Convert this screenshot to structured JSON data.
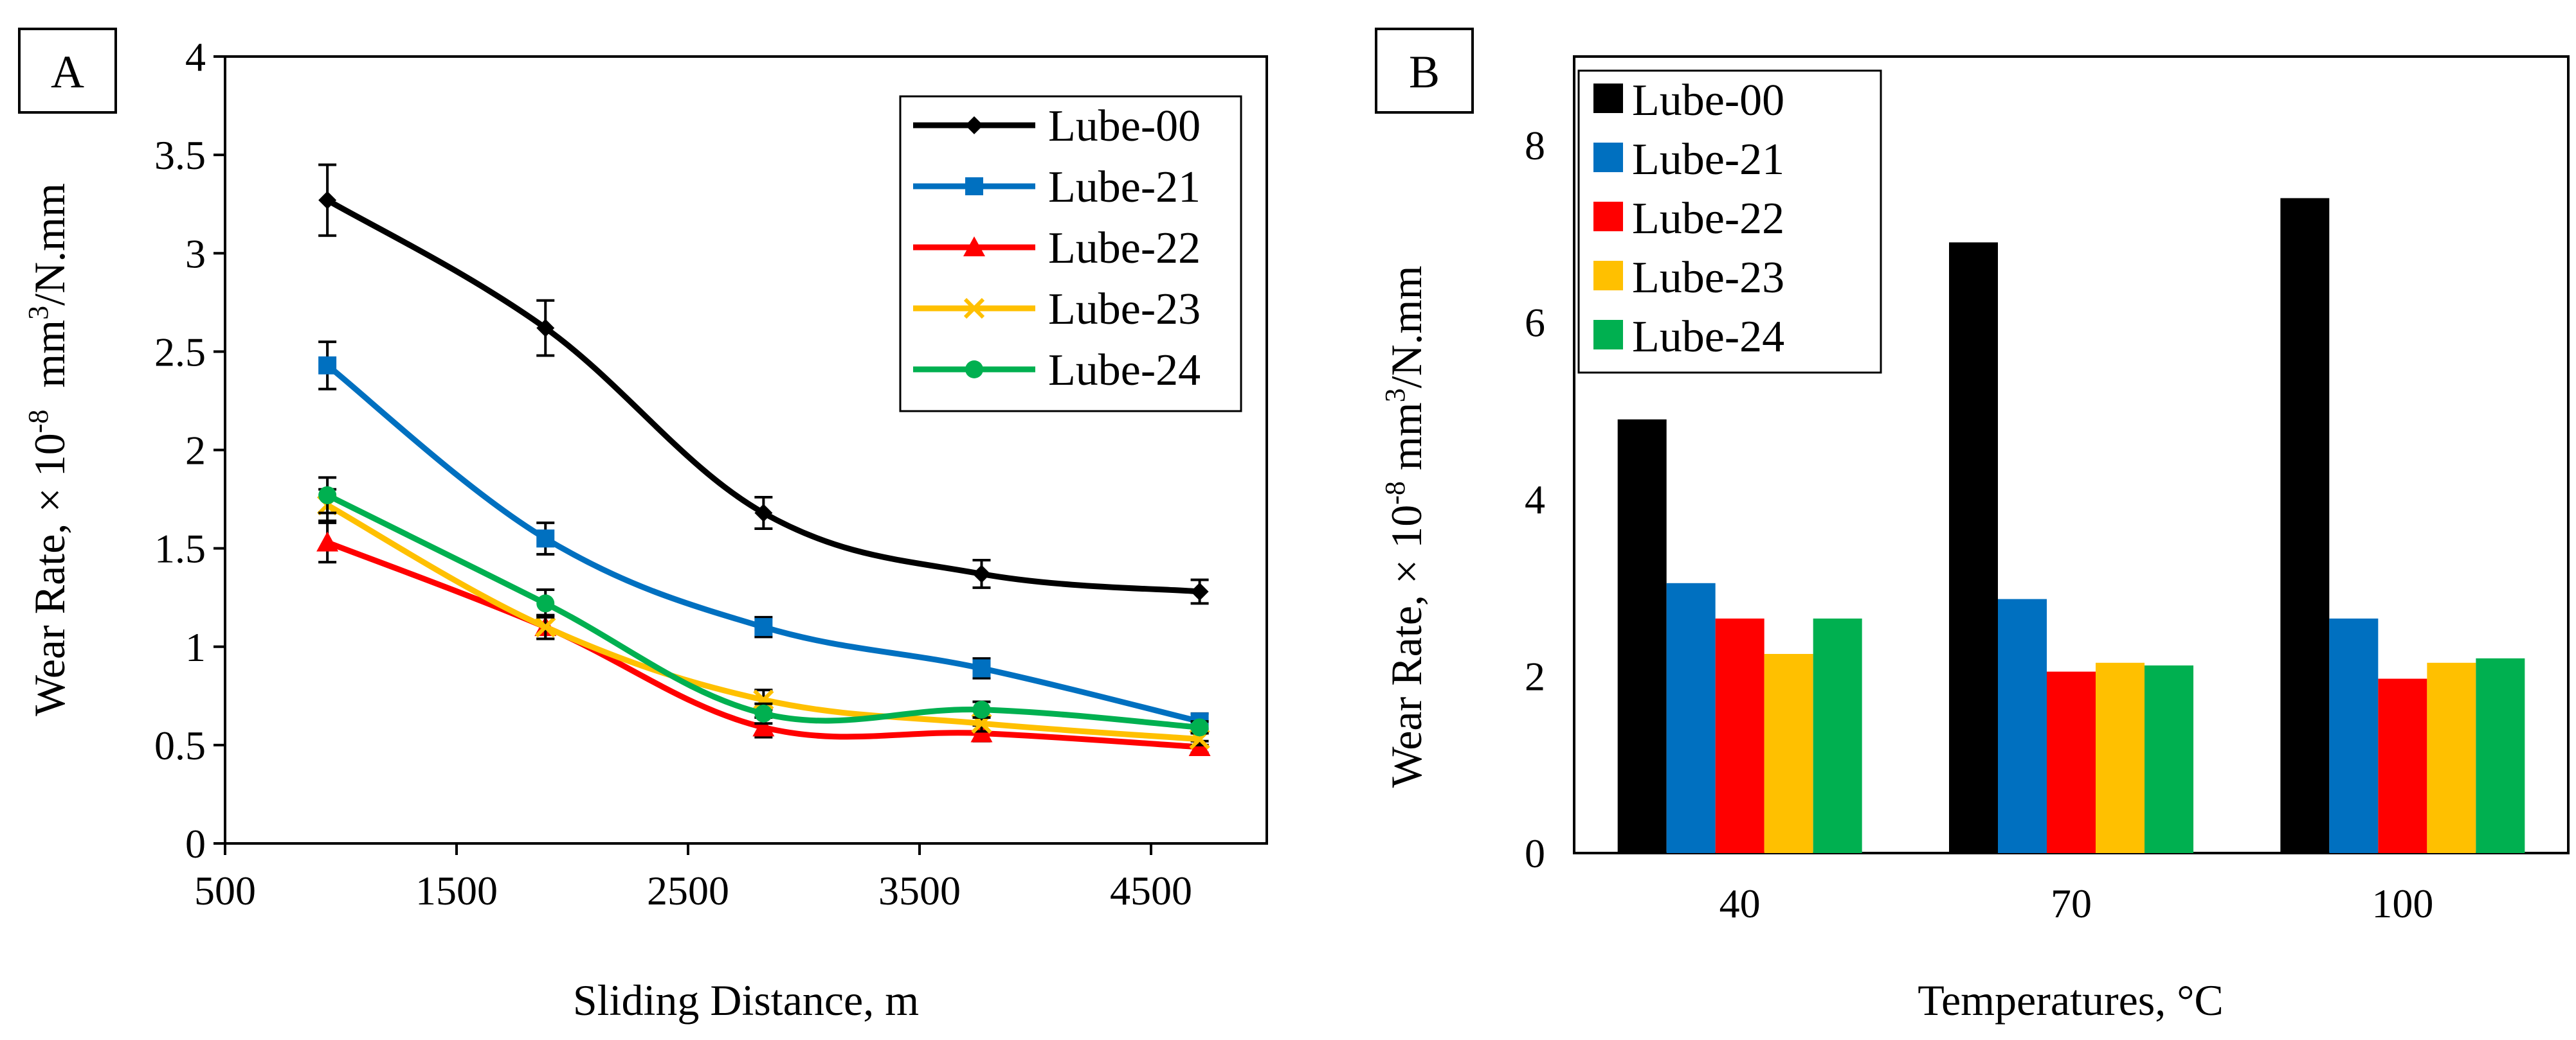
{
  "chart_data": [
    {
      "panel_label": "A",
      "type": "line",
      "xlabel": "Sliding Distance, m",
      "ylabel_main": "Wear Rate, × 10",
      "ylabel_exp": "-8",
      "ylabel_unit": "  mm",
      "ylabel_unit_exp": "3",
      "ylabel_tail": "/N.mm",
      "xlim": [
        500,
        5000
      ],
      "ylim": [
        0,
        4
      ],
      "xticks": [
        "500",
        "1500",
        "2500",
        "3500",
        "4500"
      ],
      "yticks": [
        "0",
        "0.5",
        "1",
        "1.5",
        "2",
        "2.5",
        "3",
        "3.5",
        "4"
      ],
      "x": [
        942,
        1884,
        2826,
        3768,
        4710
      ],
      "series": [
        {
          "name": "Lube-00",
          "color": "#000000",
          "marker": "diamond",
          "values": [
            3.27,
            2.62,
            1.68,
            1.37,
            1.28
          ],
          "errors": [
            0.18,
            0.14,
            0.08,
            0.07,
            0.06
          ]
        },
        {
          "name": "Lube-21",
          "color": "#0070C0",
          "marker": "square",
          "values": [
            2.43,
            1.55,
            1.1,
            0.89,
            0.62
          ],
          "errors": [
            0.12,
            0.08,
            0.05,
            0.05,
            0.04
          ]
        },
        {
          "name": "Lube-22",
          "color": "#FF0000",
          "marker": "triangle",
          "values": [
            1.53,
            1.1,
            0.59,
            0.56,
            0.49
          ],
          "errors": [
            0.1,
            0.06,
            0.05,
            0.04,
            0.03
          ]
        },
        {
          "name": "Lube-23",
          "color": "#FFC000",
          "marker": "x",
          "values": [
            1.72,
            1.1,
            0.73,
            0.61,
            0.53
          ],
          "errors": [
            0.08,
            0.06,
            0.05,
            0.04,
            0.03
          ]
        },
        {
          "name": "Lube-24",
          "color": "#00B050",
          "marker": "circle",
          "values": [
            1.77,
            1.22,
            0.66,
            0.68,
            0.59
          ],
          "errors": [
            0.09,
            0.07,
            0.05,
            0.04,
            0.03
          ]
        }
      ]
    },
    {
      "panel_label": "B",
      "type": "bar",
      "xlabel": "Temperatures, °C",
      "ylabel_main": "Wear Rate, × 10",
      "ylabel_exp": "-8",
      "ylabel_unit": " mm",
      "ylabel_unit_exp": "3",
      "ylabel_tail": "/N.mm",
      "ylim": [
        0,
        9
      ],
      "yticks": [
        "0",
        "2",
        "4",
        "6",
        "8"
      ],
      "categories": [
        "40",
        "70",
        "100"
      ],
      "series": [
        {
          "name": "Lube-00",
          "color": "#000000",
          "values": [
            4.9,
            6.9,
            7.4
          ]
        },
        {
          "name": "Lube-21",
          "color": "#0070C0",
          "values": [
            3.05,
            2.87,
            2.65
          ]
        },
        {
          "name": "Lube-22",
          "color": "#FF0000",
          "values": [
            2.65,
            2.05,
            1.97
          ]
        },
        {
          "name": "Lube-23",
          "color": "#FFC000",
          "values": [
            2.25,
            2.15,
            2.15
          ]
        },
        {
          "name": "Lube-24",
          "color": "#00B050",
          "values": [
            2.65,
            2.12,
            2.2
          ]
        }
      ]
    }
  ]
}
